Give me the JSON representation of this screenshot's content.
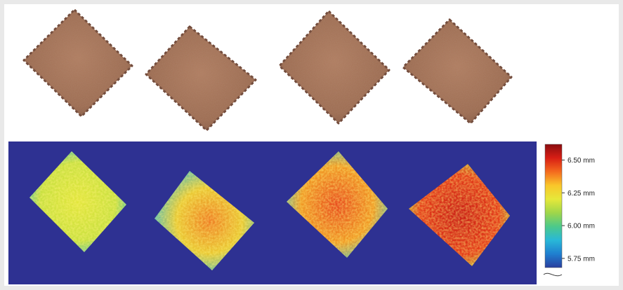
{
  "colorbar": {
    "ticks": [
      {
        "label": "6.50 mm",
        "value": 6.5
      },
      {
        "label": "6.25 mm",
        "value": 6.25
      },
      {
        "label": "6.00 mm",
        "value": 6.0
      },
      {
        "label": "5.75 mm",
        "value": 5.75
      }
    ],
    "colors": [
      "#8a0d10",
      "#d81e14",
      "#f46a1e",
      "#f9c62a",
      "#e6e83a",
      "#9fd64a",
      "#4cc98a",
      "#29b8d8",
      "#1f7fd0",
      "#2a3f9e"
    ]
  },
  "colors": {
    "background": "#2e3192",
    "biscuit": "#a06a4f",
    "biscuit_edge": "#6e4636"
  },
  "photos": {
    "count": 4
  },
  "heightmaps": {
    "count": 4
  }
}
